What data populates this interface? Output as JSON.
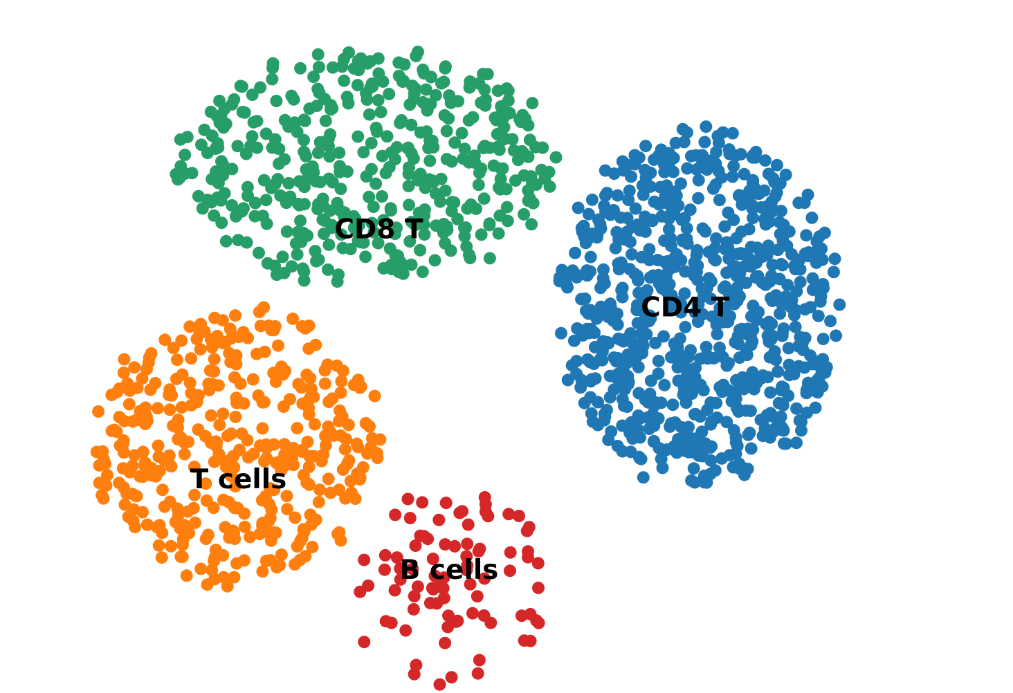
{
  "chart_data": {
    "type": "scatter",
    "title": "",
    "xlabel": "",
    "ylabel": "",
    "axes_visible": false,
    "grid": false,
    "legend": "none",
    "xlim": [
      -7.5,
      7.5
    ],
    "ylim": [
      -5.1,
      5.1
    ],
    "series": [
      {
        "name": "CD4 T",
        "color": "#1f77b4",
        "n_points": 760,
        "center": [
          3.0,
          0.6
        ],
        "spread": [
          2.2,
          2.9
        ],
        "label_position": [
          2.8,
          0.6
        ],
        "seed": 11
      },
      {
        "name": "CD8 T",
        "color": "#279e68",
        "n_points": 440,
        "center": [
          -2.2,
          2.9
        ],
        "spread": [
          3.0,
          1.9
        ],
        "label_position": [
          -2.0,
          1.85
        ],
        "seed": 23
      },
      {
        "name": "T cells",
        "color": "#ff7f0e",
        "n_points": 390,
        "center": [
          -4.2,
          -1.6
        ],
        "spread": [
          2.3,
          2.2
        ],
        "label_position": [
          -4.2,
          -2.15
        ],
        "seed": 37
      },
      {
        "name": "B cells",
        "color": "#d62728",
        "n_points": 85,
        "center": [
          -0.9,
          -3.9
        ],
        "spread": [
          1.6,
          1.6
        ],
        "label_position": [
          -0.9,
          -3.6
        ],
        "seed": 53
      }
    ]
  }
}
